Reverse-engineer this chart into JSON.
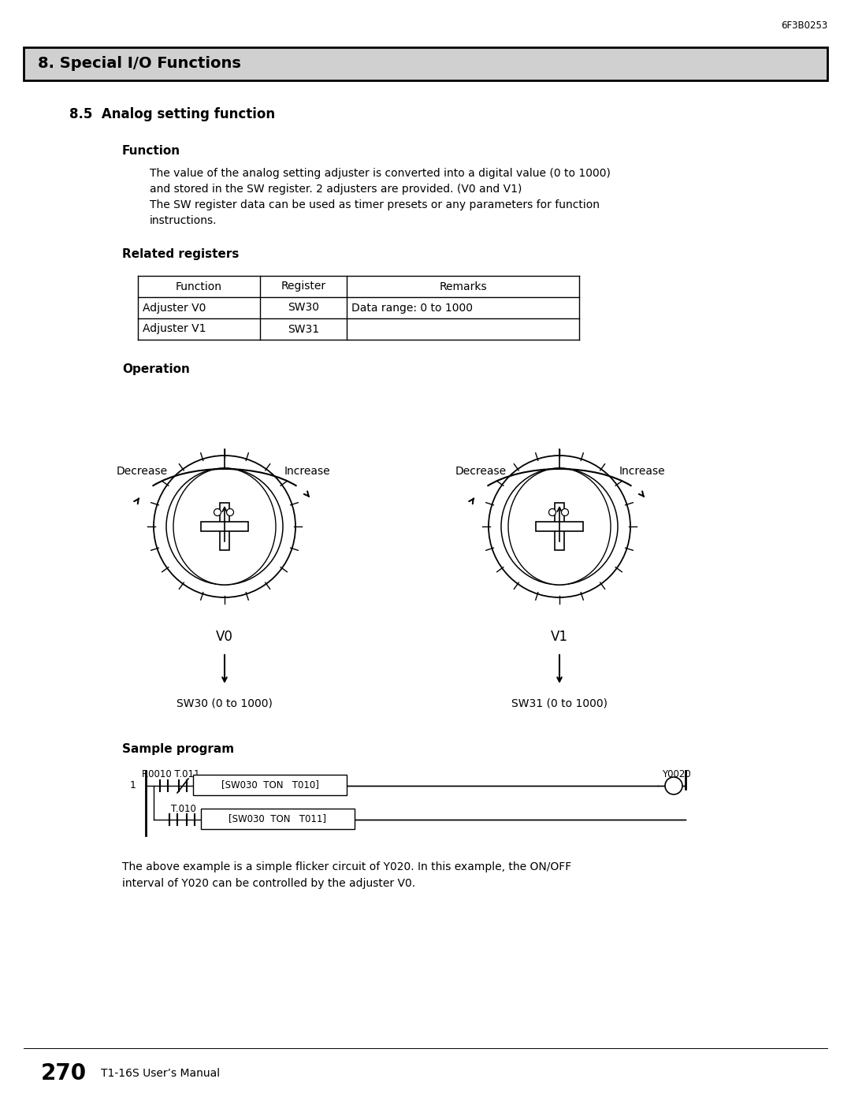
{
  "page_header": "6F3B0253",
  "section_title": "8. Special I/O Functions",
  "subsection_title": "8.5  Analog setting function",
  "function_heading": "Function",
  "function_text": [
    "The value of the analog setting adjuster is converted into a digital value (0 to 1000)",
    "and stored in the SW register. 2 adjusters are provided. (V0 and V1)",
    "The SW register data can be used as timer presets or any parameters for function",
    "instructions."
  ],
  "related_heading": "Related registers",
  "table_headers": [
    "Function",
    "Register",
    "Remarks"
  ],
  "table_row1": [
    "Adjuster V0",
    "SW30",
    "Data range: 0 to 1000"
  ],
  "table_row2": [
    "Adjuster V1",
    "SW31",
    ""
  ],
  "operation_heading": "Operation",
  "label_decrease": "Decrease",
  "label_increase": "Increase",
  "label_v0": "V0",
  "label_v1": "V1",
  "label_sw30": "SW30 (0 to 1000)",
  "label_sw31": "SW31 (0 to 1000)",
  "sample_heading": "Sample program",
  "ladder_r0010_t011": "R0010 T.011",
  "ladder_fb1": "[SW030  TON   T010]",
  "ladder_y0020": "Y0020",
  "ladder_t010": "T.010",
  "ladder_fb2": "[SW030  TON   T011]",
  "below_text": [
    "The above example is a simple flicker circuit of Y020. In this example, the ON/OFF",
    "interval of Y020 can be controlled by the adjuster V0."
  ],
  "footer_page": "270",
  "footer_text": "T1-16S User’s Manual",
  "bg_color": "#ffffff",
  "text_color": "#000000",
  "section_bg": "#d0d0d0"
}
